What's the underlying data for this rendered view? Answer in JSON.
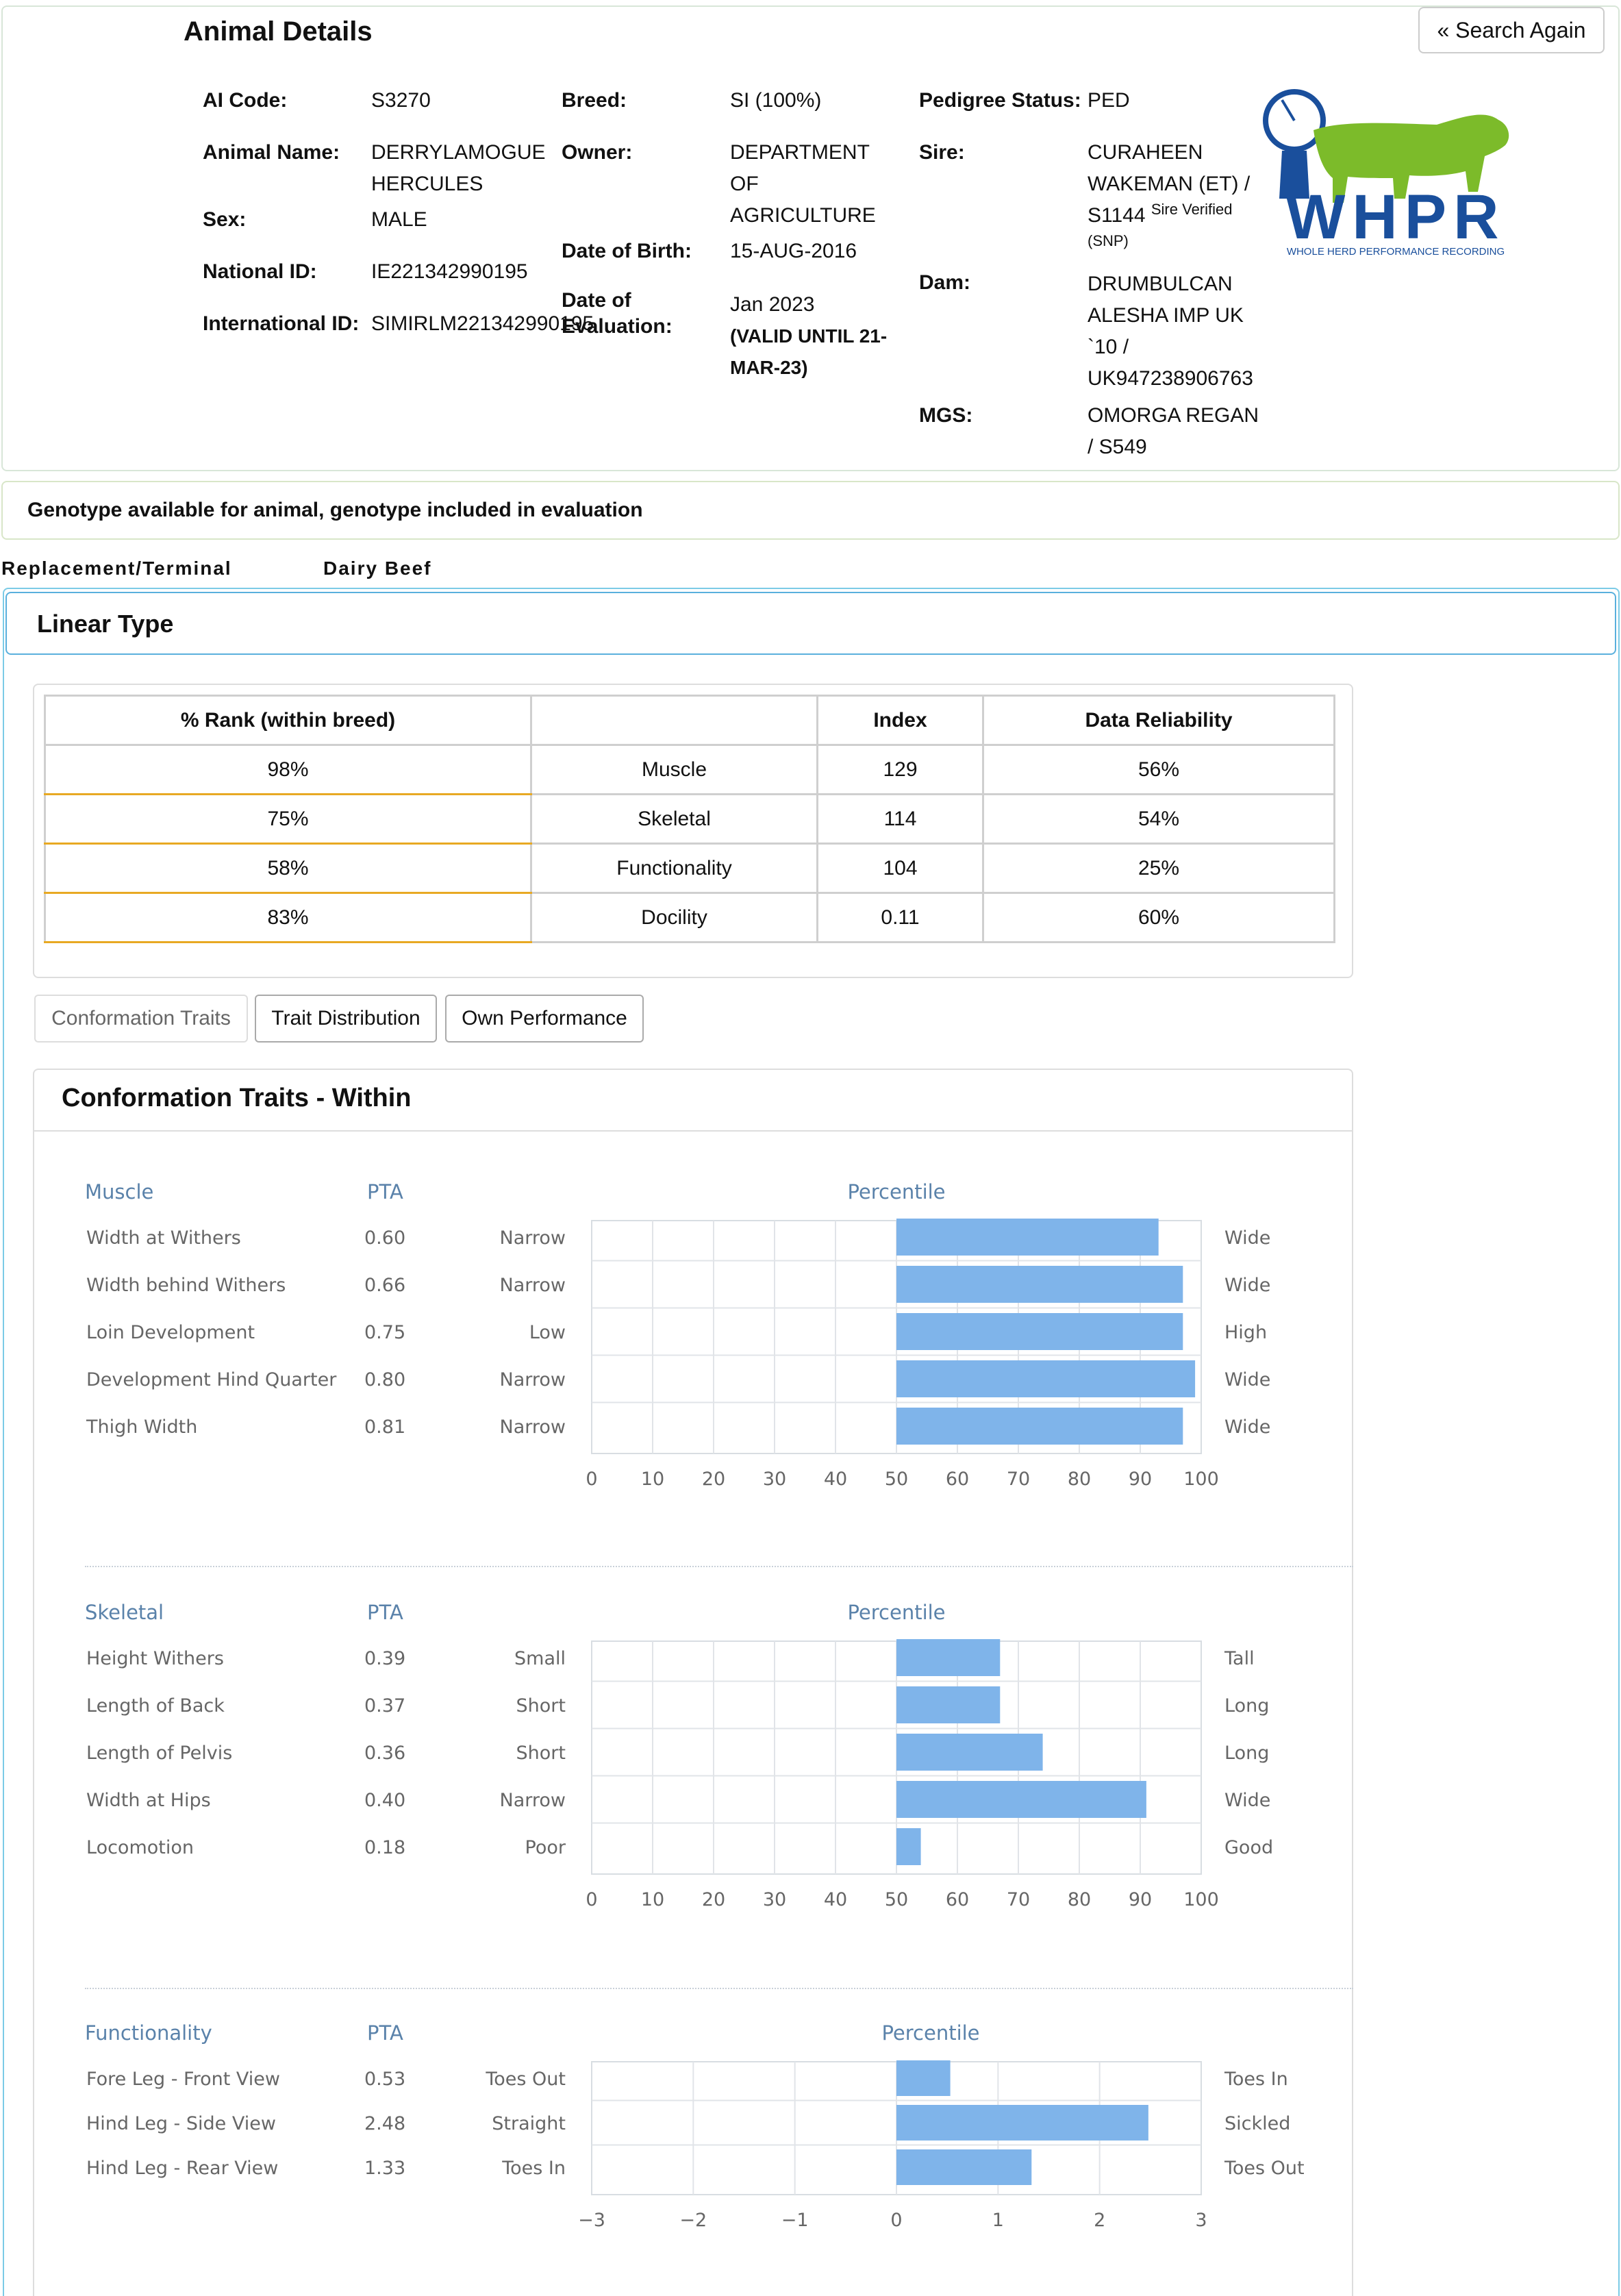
{
  "details": {
    "title": "Animal Details",
    "search_again": "« Search Again",
    "ai_code_label": "AI Code:",
    "ai_code": "S3270",
    "animal_name_label": "Animal Name:",
    "animal_name_1": "DERRYLAMOGUE",
    "animal_name_2": "HERCULES",
    "sex_label": "Sex:",
    "sex": "MALE",
    "national_id_label": "National ID:",
    "national_id": "IE221342990195",
    "international_id_label": "International ID:",
    "international_id": "SIMIRLM221342990195",
    "breed_label": "Breed:",
    "breed": "SI (100%)",
    "owner_label": "Owner:",
    "owner_1": "DEPARTMENT",
    "owner_2": "OF",
    "owner_3": "AGRICULTURE",
    "dob_label": "Date of Birth:",
    "dob": "15-AUG-2016",
    "eval_label_1": "Date of",
    "eval_label_2": "Evaluation:",
    "eval_date": "Jan 2023",
    "eval_valid_1": "(VALID UNTIL 21-",
    "eval_valid_2": "MAR-23)",
    "pedigree_label": "Pedigree Status:",
    "pedigree": "PED",
    "sire_label": "Sire:",
    "sire_1": "CURAHEEN",
    "sire_2": "WAKEMAN (ET) /",
    "sire_3": "S1144",
    "sire_verified": "Sire Verified",
    "sire_snp": "(SNP)",
    "dam_label": "Dam:",
    "dam_1": "DRUMBULCAN",
    "dam_2": "ALESHA IMP UK",
    "dam_3": "`10 /",
    "dam_4": "UK947238906763",
    "mgs_label": "MGS:",
    "mgs_1": "OMORGA REGAN",
    "mgs_2": "/ S549"
  },
  "logo": {
    "text": "WHPR",
    "tagline": "WHOLE HERD PERFORMANCE RECORDING",
    "green": "#7cbb2a",
    "blue": "#1a4f9c"
  },
  "genotype_notice": "Genotype available for animal, genotype included in evaluation",
  "nav": {
    "replacement": "Replacement/Terminal",
    "dairy_beef": "Dairy Beef"
  },
  "linear_type": {
    "title": "Linear Type",
    "table": {
      "headers": [
        "% Rank (within breed)",
        "",
        "Index",
        "Data Reliability"
      ],
      "rows": [
        [
          "98%",
          "Muscle",
          "129",
          "56%"
        ],
        [
          "75%",
          "Skeletal",
          "114",
          "54%"
        ],
        [
          "58%",
          "Functionality",
          "104",
          "25%"
        ],
        [
          "83%",
          "Docility",
          "0.11",
          "60%"
        ]
      ]
    },
    "tabs": [
      "Conformation Traits",
      "Trait Distribution",
      "Own Performance"
    ],
    "conformation_title": "Conformation Traits - Within"
  },
  "chart_data": [
    {
      "type": "bar",
      "section": "Muscle",
      "pta_header": "PTA",
      "axis_title": "Percentile",
      "xlim": [
        0,
        100
      ],
      "ticks": [
        "0",
        "10",
        "20",
        "30",
        "40",
        "50",
        "60",
        "70",
        "80",
        "90",
        "100"
      ],
      "baseline": 50,
      "traits": [
        {
          "name": "Width at Withers",
          "pta": "0.60",
          "low": "Narrow",
          "high": "Wide",
          "value": 93
        },
        {
          "name": "Width behind Withers",
          "pta": "0.66",
          "low": "Narrow",
          "high": "Wide",
          "value": 97
        },
        {
          "name": "Loin Development",
          "pta": "0.75",
          "low": "Low",
          "high": "High",
          "value": 97
        },
        {
          "name": "Development Hind Quarter",
          "pta": "0.80",
          "low": "Narrow",
          "high": "Wide",
          "value": 99
        },
        {
          "name": "Thigh Width",
          "pta": "0.81",
          "low": "Narrow",
          "high": "Wide",
          "value": 97
        }
      ]
    },
    {
      "type": "bar",
      "section": "Skeletal",
      "pta_header": "PTA",
      "axis_title": "Percentile",
      "xlim": [
        0,
        100
      ],
      "ticks": [
        "0",
        "10",
        "20",
        "30",
        "40",
        "50",
        "60",
        "70",
        "80",
        "90",
        "100"
      ],
      "baseline": 50,
      "traits": [
        {
          "name": "Height Withers",
          "pta": "0.39",
          "low": "Small",
          "high": "Tall",
          "value": 67
        },
        {
          "name": "Length of Back",
          "pta": "0.37",
          "low": "Short",
          "high": "Long",
          "value": 67
        },
        {
          "name": "Length of Pelvis",
          "pta": "0.36",
          "low": "Short",
          "high": "Long",
          "value": 74
        },
        {
          "name": "Width at Hips",
          "pta": "0.40",
          "low": "Narrow",
          "high": "Wide",
          "value": 91
        },
        {
          "name": "Locomotion",
          "pta": "0.18",
          "low": "Poor",
          "high": "Good",
          "value": 54
        }
      ]
    },
    {
      "type": "bar",
      "section": "Functionality",
      "pta_header": "PTA",
      "axis_title": "Percentile",
      "xlim": [
        -3,
        3
      ],
      "ticks": [
        "-3",
        "-2",
        "-1",
        "0",
        "1",
        "2",
        "3"
      ],
      "baseline": 0,
      "traits": [
        {
          "name": "Fore Leg - Front View",
          "pta": "0.53",
          "low": "Toes Out",
          "high": "Toes In",
          "value": 0.53
        },
        {
          "name": "Hind Leg - Side View",
          "pta": "2.48",
          "low": "Straight",
          "high": "Sickled",
          "value": 2.48
        },
        {
          "name": "Hind Leg - Rear View",
          "pta": "1.33",
          "low": "Toes In",
          "high": "Toes Out",
          "value": 1.33
        }
      ]
    }
  ],
  "colors": {
    "bar": "#7fb4ea",
    "accent_blue": "#5a82aa",
    "rank_underline": "#e8a923",
    "panel_border": "#7ccbe6"
  }
}
